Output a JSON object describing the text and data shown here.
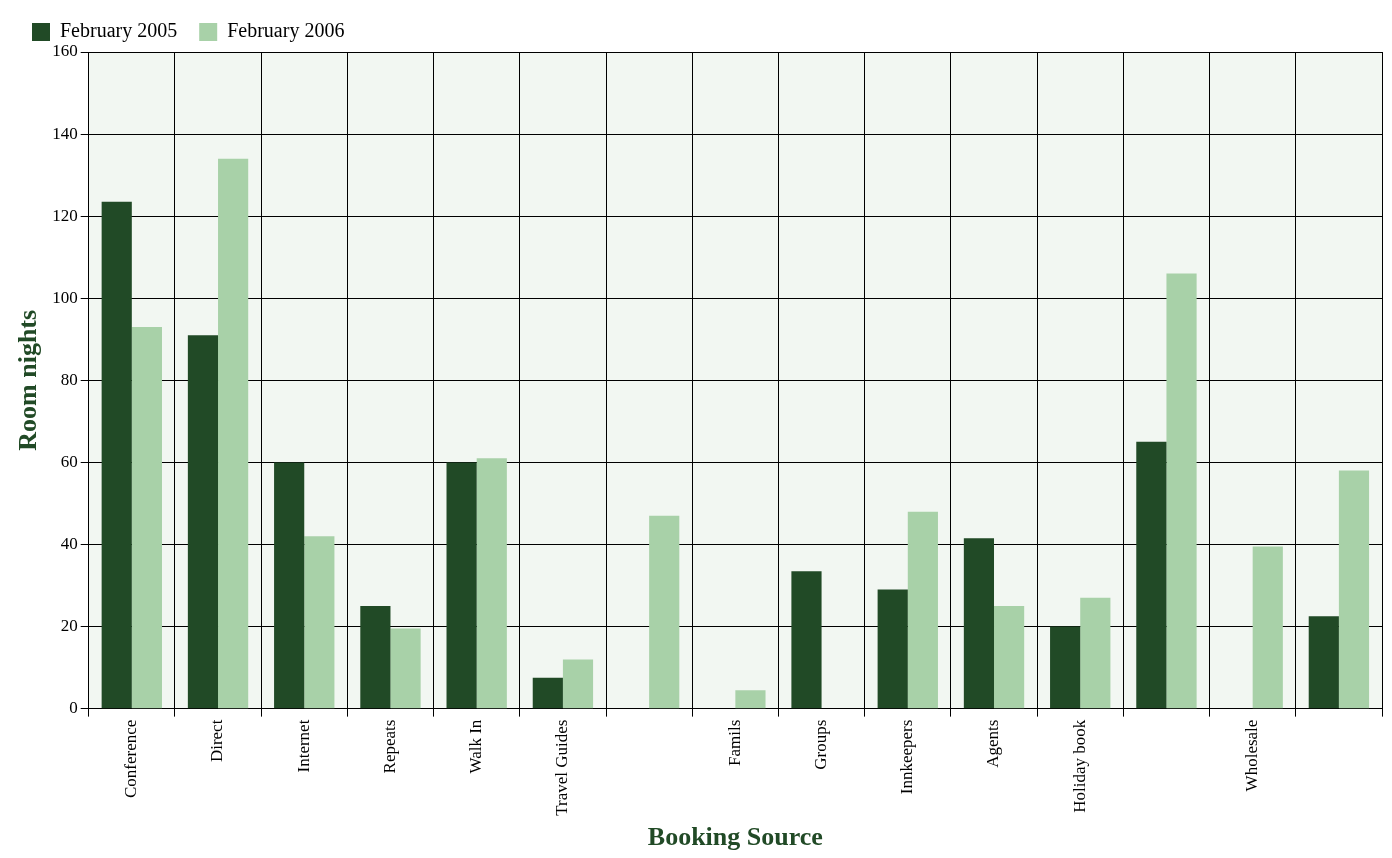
{
  "chart_data": {
    "type": "bar",
    "xlabel": "Booking Source",
    "ylabel": "Room nights",
    "categories": [
      "Conference",
      "Direct",
      "Internet",
      "Repeats",
      "Walk In",
      "Travel Guides",
      null,
      "Famils",
      "Groups",
      "Innkeepers",
      "Agents",
      "Holiday book",
      null,
      "Wholesale",
      null
    ],
    "series": [
      {
        "name": "February 2005",
        "color": "#214a26",
        "values": [
          123.5,
          91,
          60,
          25,
          60,
          7.5,
          0,
          0,
          33.5,
          29,
          41.5,
          20,
          65,
          0,
          22.5
        ]
      },
      {
        "name": "February 2006",
        "color": "#a8d1a8",
        "values": [
          93,
          134,
          42,
          19.5,
          61,
          12,
          47,
          4.5,
          0,
          48,
          25,
          27,
          106,
          39.5,
          58
        ]
      }
    ],
    "ylim": [
      0,
      160
    ],
    "yticks": [
      0,
      20,
      40,
      60,
      80,
      100,
      120,
      140,
      160
    ],
    "grid": true,
    "legend": "top left"
  }
}
